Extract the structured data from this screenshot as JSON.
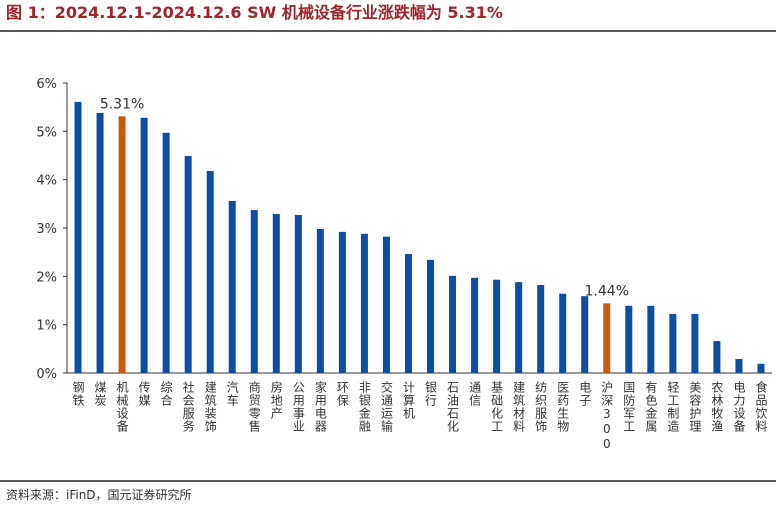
{
  "chart_data": {
    "type": "bar",
    "title": "图 1：2024.12.1-2024.12.6 SW 机械设备行业涨跌幅为 5.31%",
    "source": "资料来源：iFinD，国元证券研究所",
    "categories": [
      "钢铁",
      "煤炭",
      "机械设备",
      "传媒",
      "综合",
      "社会服务",
      "建筑装饰",
      "汽车",
      "商贸零售",
      "房地产",
      "公用事业",
      "家用电器",
      "环保",
      "非银金融",
      "交通运输",
      "计算机",
      "银行",
      "石油石化",
      "通信",
      "基础化工",
      "建筑材料",
      "纺织服饰",
      "医药生物",
      "电子",
      "沪深300",
      "国防军工",
      "有色金属",
      "轻工制造",
      "美容护理",
      "农林牧渔",
      "电力设备",
      "食品饮料"
    ],
    "values": [
      5.61,
      5.38,
      5.31,
      5.28,
      4.97,
      4.49,
      4.18,
      3.56,
      3.37,
      3.29,
      3.27,
      2.98,
      2.92,
      2.88,
      2.82,
      2.46,
      2.34,
      2.01,
      1.97,
      1.93,
      1.88,
      1.82,
      1.64,
      1.59,
      1.44,
      1.39,
      1.39,
      1.22,
      1.22,
      0.66,
      0.29,
      0.19
    ],
    "value_labels": [
      null,
      null,
      "5.31%",
      null,
      null,
      null,
      null,
      null,
      null,
      null,
      null,
      null,
      null,
      null,
      null,
      null,
      null,
      null,
      null,
      null,
      null,
      null,
      null,
      null,
      "1.44%",
      null,
      null,
      null,
      null,
      null,
      null,
      null
    ],
    "colors": [
      "#0b4ea2",
      "#0b4ea2",
      "#c55a11",
      "#0b4ea2",
      "#0b4ea2",
      "#0b4ea2",
      "#0b4ea2",
      "#0b4ea2",
      "#0b4ea2",
      "#0b4ea2",
      "#0b4ea2",
      "#0b4ea2",
      "#0b4ea2",
      "#0b4ea2",
      "#0b4ea2",
      "#0b4ea2",
      "#0b4ea2",
      "#0b4ea2",
      "#0b4ea2",
      "#0b4ea2",
      "#0b4ea2",
      "#0b4ea2",
      "#0b4ea2",
      "#0b4ea2",
      "#c55a11",
      "#0b4ea2",
      "#0b4ea2",
      "#0b4ea2",
      "#0b4ea2",
      "#0b4ea2",
      "#0b4ea2",
      "#0b4ea2"
    ],
    "ylim": [
      0,
      6
    ],
    "yticks": [
      {
        "value": 0,
        "label": "0%"
      },
      {
        "value": 1,
        "label": "1%"
      },
      {
        "value": 2,
        "label": "2%"
      },
      {
        "value": 3,
        "label": "3%"
      },
      {
        "value": 4,
        "label": "4%"
      },
      {
        "value": 5,
        "label": "5%"
      },
      {
        "value": 6,
        "label": "6%"
      }
    ]
  }
}
